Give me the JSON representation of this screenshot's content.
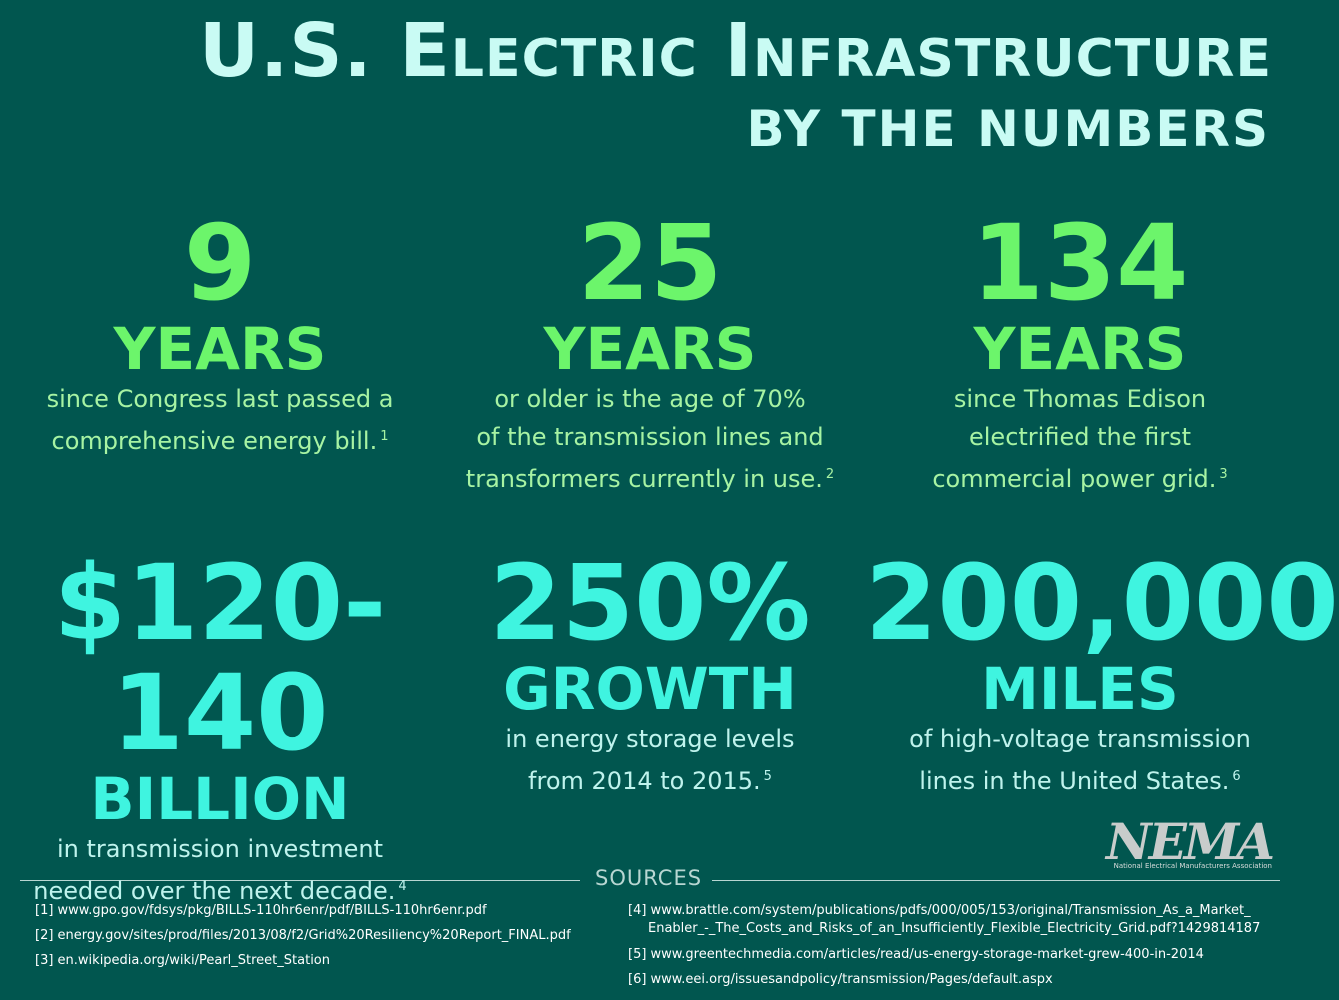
{
  "header": {
    "title": "U.S. Electric Infrastructure",
    "subtitle": "BY THE NUMBERS"
  },
  "stats": [
    {
      "number": "9",
      "unit": "YEARS",
      "lines": [
        "since Congress last passed a",
        "comprehensive energy bill."
      ],
      "note": "1"
    },
    {
      "number": "25",
      "unit": "YEARS",
      "lines": [
        "or older is the age of 70%",
        "of the transmission lines and",
        "transformers currently in use."
      ],
      "note": "2"
    },
    {
      "number": "134",
      "unit": "YEARS",
      "lines": [
        "since Thomas Edison",
        "electrified the first",
        "commercial power grid."
      ],
      "note": "3"
    },
    {
      "number": "$120-140",
      "unit": "BILLION",
      "lines": [
        "in transmission investment",
        "needed over the next decade."
      ],
      "note": "4"
    },
    {
      "number": "250%",
      "unit": "GROWTH",
      "lines": [
        "in energy storage levels",
        "from 2014 to 2015."
      ],
      "note": "5"
    },
    {
      "number": "200,000",
      "unit": "MILES",
      "lines": [
        "of high-voltage transmission",
        "lines in the United States."
      ],
      "note": "6"
    }
  ],
  "sources": {
    "heading": "SOURCES",
    "left": [
      [
        "[1] www.gpo.gov/fdsys/pkg/BILLS-110hr6enr/pdf/BILLS-110hr6enr.pdf"
      ],
      [
        "[2] energy.gov/sites/prod/files/2013/08/f2/Grid%20Resiliency%20Report_FINAL.pdf"
      ],
      [
        "[3] en.wikipedia.org/wiki/Pearl_Street_Station"
      ]
    ],
    "right": [
      [
        "[4] www.brattle.com/system/publications/pdfs/000/005/153/original/Transmission_As_a_Market_",
        "Enabler_-_The_Costs_and_Risks_of_an_Insufficiently_Flexible_Electricity_Grid.pdf?1429814187"
      ],
      [
        "[5] www.greentechmedia.com/articles/read/us-energy-storage-market-grew-400-in-2014"
      ],
      [
        "[6] www.eei.org/issuesandpolicy/transmission/Pages/default.aspx"
      ]
    ]
  },
  "logo": {
    "name": "NEMA",
    "caption": "National Electrical Manufacturers Association"
  }
}
